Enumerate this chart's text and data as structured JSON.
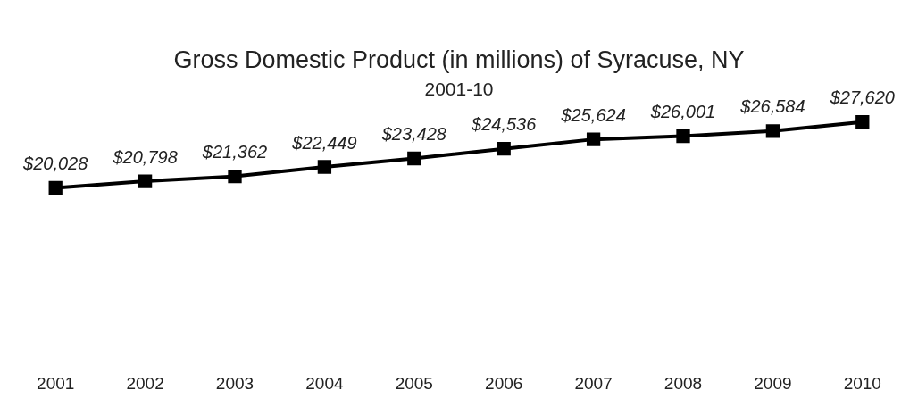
{
  "chart_data": {
    "type": "line",
    "title": "Gross Domestic Product (in millions) of Syracuse, NY",
    "subtitle": "2001-10",
    "categories": [
      "2001",
      "2002",
      "2003",
      "2004",
      "2005",
      "2006",
      "2007",
      "2008",
      "2009",
      "2010"
    ],
    "series": [
      {
        "color": "#000000",
        "values": [
          20028,
          20798,
          21362,
          22449,
          23428,
          24536,
          25624,
          26001,
          26584,
          27620
        ],
        "value_labels": [
          "$20,028",
          "$20,798",
          "$21,362",
          "$22,449",
          "$23,428",
          "$24,536",
          "$25,624",
          "$26,001",
          "$26,584",
          "$27,620"
        ]
      }
    ],
    "marker": "square",
    "line_style": "solid",
    "grid": false,
    "legend": false,
    "tick_labels": "x"
  }
}
